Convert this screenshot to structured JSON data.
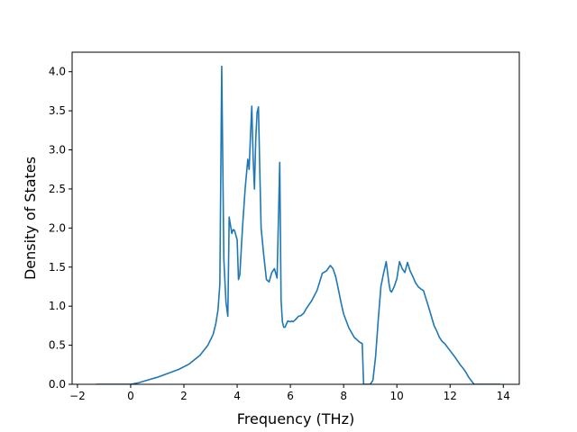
{
  "chart_data": {
    "type": "line",
    "title": "",
    "xlabel": "Frequency (THz)",
    "ylabel": "Density of States",
    "xlim": [
      -2.2,
      14.6
    ],
    "ylim": [
      0,
      4.25
    ],
    "grid": false,
    "x_ticks": [
      -2,
      0,
      2,
      4,
      6,
      8,
      10,
      12,
      14
    ],
    "x_tick_labels": [
      "−2",
      "0",
      "2",
      "4",
      "6",
      "8",
      "10",
      "12",
      "14"
    ],
    "y_ticks": [
      0.0,
      0.5,
      1.0,
      1.5,
      2.0,
      2.5,
      3.0,
      3.5,
      4.0
    ],
    "y_tick_labels": [
      "0.0",
      "0.5",
      "1.0",
      "1.5",
      "2.0",
      "2.5",
      "3.0",
      "3.5",
      "4.0"
    ],
    "series": [
      {
        "color": "#1f77b4",
        "x": [
          -1.3,
          -0.5,
          0.0,
          0.3,
          0.6,
          1.0,
          1.4,
          1.8,
          2.2,
          2.6,
          2.9,
          3.1,
          3.2,
          3.28,
          3.35,
          3.42,
          3.5,
          3.58,
          3.65,
          3.7,
          3.8,
          3.85,
          3.9,
          4.0,
          4.05,
          4.1,
          4.2,
          4.3,
          4.4,
          4.45,
          4.5,
          4.55,
          4.6,
          4.65,
          4.7,
          4.75,
          4.8,
          4.85,
          4.9,
          5.0,
          5.1,
          5.2,
          5.3,
          5.4,
          5.5,
          5.6,
          5.65,
          5.7,
          5.75,
          5.8,
          5.9,
          6.0,
          6.05,
          6.1,
          6.2,
          6.3,
          6.4,
          6.5,
          6.6,
          6.8,
          7.0,
          7.2,
          7.35,
          7.5,
          7.6,
          7.7,
          7.8,
          7.9,
          8.0,
          8.2,
          8.4,
          8.6,
          8.7,
          8.75,
          8.8,
          9.0,
          9.1,
          9.2,
          9.3,
          9.4,
          9.5,
          9.6,
          9.7,
          9.75,
          9.8,
          9.9,
          10.0,
          10.1,
          10.2,
          10.3,
          10.4,
          10.5,
          10.6,
          10.7,
          10.8,
          10.9,
          11.0,
          11.2,
          11.4,
          11.5,
          11.6,
          11.7,
          11.8,
          12.0,
          12.2,
          12.4,
          12.5,
          12.6,
          12.7,
          12.9,
          13.5,
          13.9
        ],
        "y": [
          0.0,
          0.0,
          0.0,
          0.02,
          0.05,
          0.09,
          0.14,
          0.19,
          0.26,
          0.37,
          0.5,
          0.64,
          0.78,
          0.95,
          1.28,
          4.07,
          1.6,
          1.05,
          0.87,
          2.14,
          1.93,
          1.98,
          1.97,
          1.85,
          1.34,
          1.4,
          2.0,
          2.5,
          2.88,
          2.75,
          3.18,
          3.56,
          2.9,
          2.5,
          3.15,
          3.48,
          3.55,
          2.75,
          2.0,
          1.65,
          1.34,
          1.31,
          1.43,
          1.48,
          1.36,
          2.84,
          1.08,
          0.8,
          0.73,
          0.73,
          0.81,
          0.8,
          0.81,
          0.8,
          0.83,
          0.87,
          0.88,
          0.91,
          0.97,
          1.07,
          1.2,
          1.42,
          1.45,
          1.52,
          1.48,
          1.38,
          1.22,
          1.05,
          0.9,
          0.72,
          0.6,
          0.54,
          0.52,
          0.0,
          0.0,
          0.0,
          0.05,
          0.35,
          0.82,
          1.25,
          1.42,
          1.57,
          1.3,
          1.2,
          1.18,
          1.25,
          1.35,
          1.57,
          1.48,
          1.43,
          1.56,
          1.45,
          1.38,
          1.3,
          1.25,
          1.22,
          1.2,
          0.98,
          0.75,
          0.68,
          0.6,
          0.55,
          0.52,
          0.43,
          0.34,
          0.24,
          0.2,
          0.15,
          0.09,
          0.0,
          0.0,
          0.0
        ]
      }
    ]
  }
}
